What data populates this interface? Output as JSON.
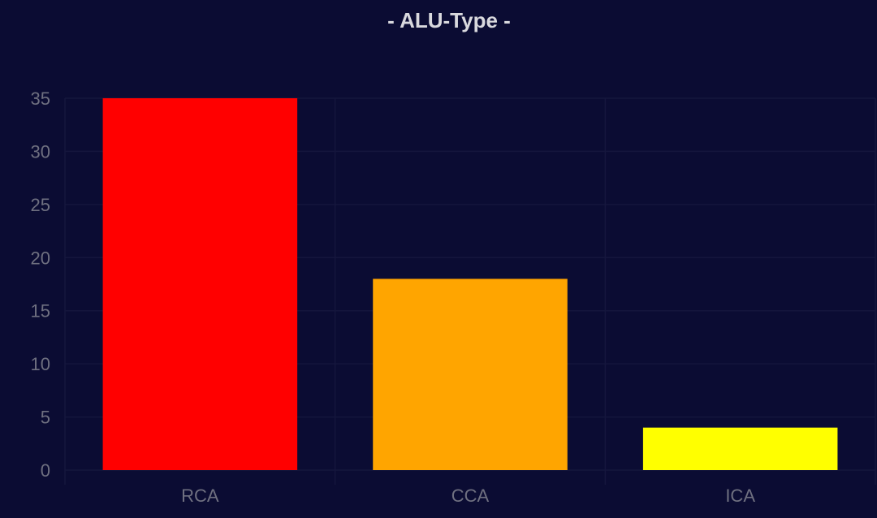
{
  "chart_data": {
    "type": "bar",
    "title": "- ALU-Type -",
    "categories": [
      "RCA",
      "CCA",
      "ICA"
    ],
    "values": [
      35,
      18,
      4
    ],
    "colors": [
      "#ff0000",
      "#ffa500",
      "#ffff00"
    ],
    "yticks": [
      0,
      5,
      10,
      15,
      20,
      25,
      30,
      35
    ],
    "ylim": [
      0,
      35
    ],
    "xlabel": "",
    "ylabel": "",
    "grid": true,
    "legend": "none"
  },
  "theme": {
    "background": "#0b0c33",
    "grid_color": "#15163d",
    "title_color": "#d9d9de",
    "tick_color": "#6f7080"
  }
}
